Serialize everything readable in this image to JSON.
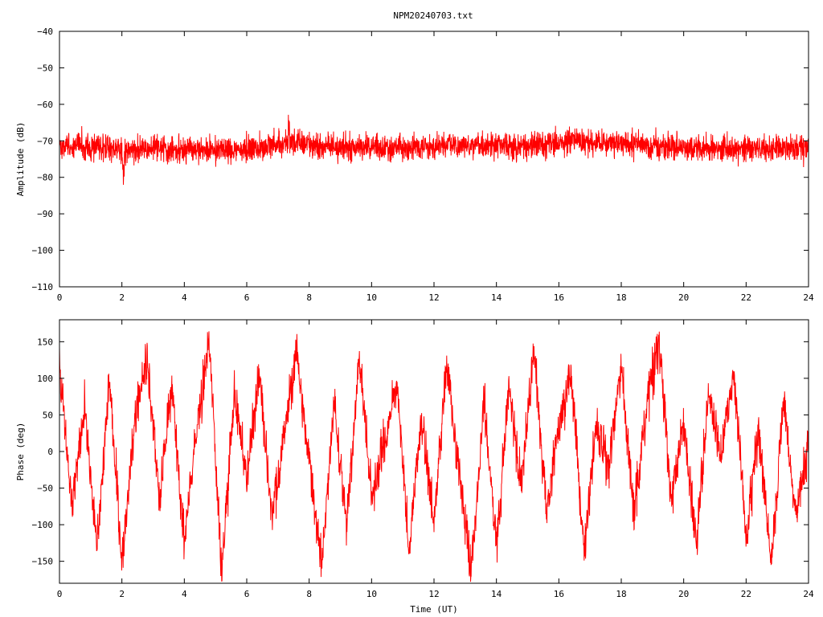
{
  "title": "NPM20240703.txt",
  "colors": {
    "series": "#ff0000",
    "axis": "#000000",
    "background": "#ffffff"
  },
  "chart_data": [
    {
      "type": "line",
      "id": "amplitude",
      "ylabel": "Amplitude (dB)",
      "xlabel": "",
      "xlim": [
        0,
        24
      ],
      "ylim": [
        -110,
        -40
      ],
      "xticks": [
        0,
        2,
        4,
        6,
        8,
        10,
        12,
        14,
        16,
        18,
        20,
        22,
        24
      ],
      "yticks": [
        -40,
        -50,
        -60,
        -70,
        -80,
        -90,
        -100,
        -110
      ],
      "ytick_labels": [
        "−40",
        "−50",
        "−60",
        "−70",
        "−80",
        "−90",
        "−100",
        "−110"
      ],
      "grid": false,
      "series": [
        {
          "color": "#ff0000",
          "noise_band_db": 3.5,
          "x": [
            0,
            0.5,
            1,
            1.5,
            2,
            2.5,
            3,
            3.5,
            4,
            4.5,
            5,
            5.5,
            6,
            6.5,
            7,
            7.5,
            8,
            8.5,
            9,
            9.5,
            10,
            10.5,
            11,
            11.5,
            12,
            12.5,
            13,
            13.5,
            14,
            14.5,
            15,
            15.5,
            16,
            16.5,
            17,
            17.5,
            18,
            18.5,
            19,
            19.5,
            20,
            20.5,
            21,
            21.5,
            22,
            22.5,
            23,
            23.5,
            24
          ],
          "y": [
            -72,
            -71.5,
            -71.5,
            -71.8,
            -72.5,
            -72,
            -72,
            -72,
            -72.5,
            -72.5,
            -72.5,
            -72.3,
            -72,
            -71.5,
            -71,
            -70.5,
            -71,
            -71.5,
            -72,
            -71.5,
            -71.5,
            -72,
            -72,
            -72,
            -71,
            -71,
            -71.5,
            -71.5,
            -71,
            -71.5,
            -71.5,
            -71,
            -70.5,
            -70,
            -70.5,
            -70.5,
            -71,
            -71,
            -71.5,
            -71.5,
            -72,
            -72,
            -72,
            -72,
            -72,
            -72,
            -72,
            -72,
            -72
          ]
        }
      ]
    },
    {
      "type": "line",
      "id": "phase",
      "ylabel": "Phase (deg)",
      "xlabel": "Time (UT)",
      "xlim": [
        0,
        24
      ],
      "ylim": [
        -180,
        180
      ],
      "xticks": [
        0,
        2,
        4,
        6,
        8,
        10,
        12,
        14,
        16,
        18,
        20,
        22,
        24
      ],
      "yticks": [
        150,
        100,
        50,
        0,
        -50,
        -100,
        -150
      ],
      "ytick_labels": [
        "150",
        "100",
        "50",
        "0",
        "−50",
        "−100",
        "−150"
      ],
      "grid": false,
      "series": [
        {
          "color": "#ff0000",
          "wrap_range_deg": [
            -180,
            180
          ],
          "noise_deg": 30,
          "x": [
            0,
            0.4,
            0.8,
            1.2,
            1.6,
            2.0,
            2.4,
            2.8,
            3.2,
            3.6,
            4.0,
            4.4,
            4.8,
            5.2,
            5.6,
            6.0,
            6.4,
            6.8,
            7.2,
            7.6,
            8.0,
            8.4,
            8.8,
            9.2,
            9.6,
            10.0,
            10.4,
            10.8,
            11.2,
            11.6,
            12.0,
            12.4,
            12.8,
            13.2,
            13.6,
            14.0,
            14.4,
            14.8,
            15.2,
            15.6,
            16.0,
            16.4,
            16.8,
            17.2,
            17.6,
            18.0,
            18.4,
            18.8,
            19.2,
            19.6,
            20.0,
            20.4,
            20.8,
            21.2,
            21.6,
            22.0,
            22.4,
            22.8,
            23.2,
            23.6,
            24.0
          ],
          "y": [
            120,
            -80,
            60,
            -130,
            100,
            -150,
            40,
            130,
            -60,
            90,
            -120,
            30,
            150,
            -170,
            80,
            -40,
            110,
            -90,
            20,
            140,
            -20,
            -150,
            60,
            -100,
            130,
            -60,
            10,
            100,
            -140,
            50,
            -100,
            120,
            -30,
            -160,
            70,
            -130,
            90,
            -50,
            140,
            -80,
            30,
            110,
            -140,
            40,
            -20,
            120,
            -90,
            60,
            150,
            -70,
            40,
            -130,
            80,
            -10,
            110,
            -120,
            30,
            -150,
            70,
            -90,
            20
          ]
        }
      ]
    }
  ]
}
